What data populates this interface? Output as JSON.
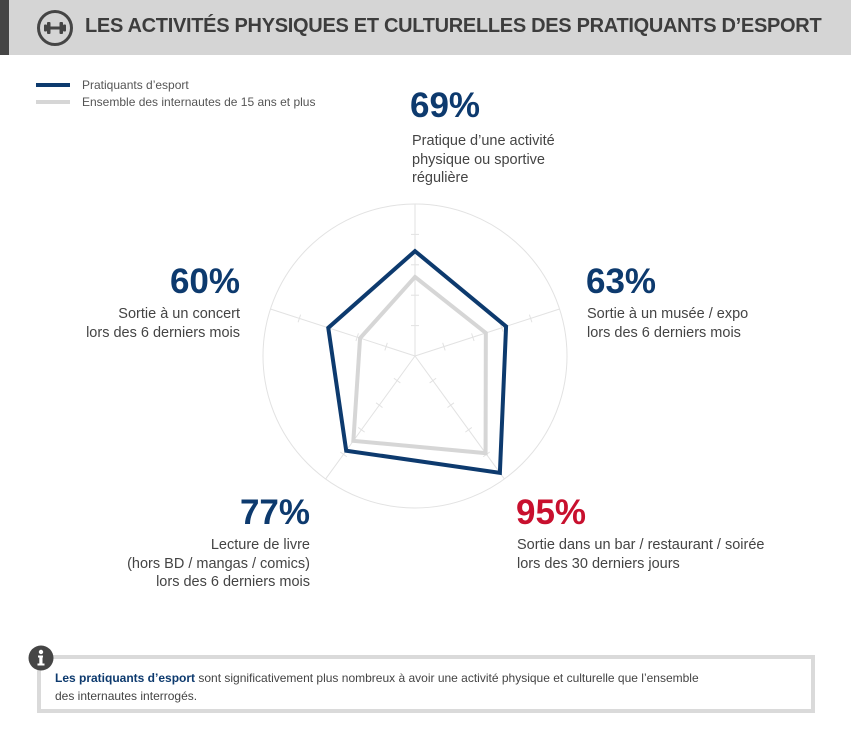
{
  "header": {
    "title": "LES ACTIVITÉS PHYSIQUES ET CULTURELLES DES PRATIQUANTS D’ESPORT",
    "icon": "dumbbell-icon"
  },
  "colors": {
    "esport": "#0d3a6e",
    "all": "#d6d6d6",
    "highlight": "#c8102e",
    "grid": "#e2e2e2"
  },
  "chart_data": {
    "type": "radar",
    "title": "Les activités physiques et culturelles des pratiquants d’esport",
    "range": [
      0,
      100
    ],
    "tick_step": 20,
    "legend": [
      "Pratiquants d’esport",
      "Ensemble des internautes de 15 ans et plus"
    ],
    "legend_position": "top-left",
    "axes": [
      {
        "value_label": "69%",
        "label": [
          "Pratique d’une activité",
          "physique ou sportive",
          "régulière"
        ]
      },
      {
        "value_label": "63%",
        "label": [
          "Sortie à un musée / expo",
          "lors des 6 derniers mois"
        ]
      },
      {
        "value_label": "95%",
        "label": [
          "Sortie dans un bar / restaurant / soirée",
          "lors des 30 derniers jours"
        ]
      },
      {
        "value_label": "77%",
        "label": [
          "Lecture de livre",
          "(hors BD / mangas / comics)",
          "lors des 6 derniers mois"
        ]
      },
      {
        "value_label": "60%",
        "label": [
          "Sortie à un concert",
          "lors des 6 derniers mois"
        ]
      }
    ],
    "series": [
      {
        "name": "Pratiquants d’esport",
        "values": [
          69,
          63,
          95,
          77,
          60
        ]
      },
      {
        "name": "Ensemble des internautes de 15 ans et plus",
        "values": [
          52,
          49,
          79,
          69,
          38
        ]
      }
    ]
  },
  "info": {
    "bold": "Les pratiquants d’esport",
    "line1": " sont significativement plus nombreux à avoir une activité physique et culturelle que l’ensemble",
    "line2": "des internautes interrogés.",
    "icon": "info-icon"
  }
}
